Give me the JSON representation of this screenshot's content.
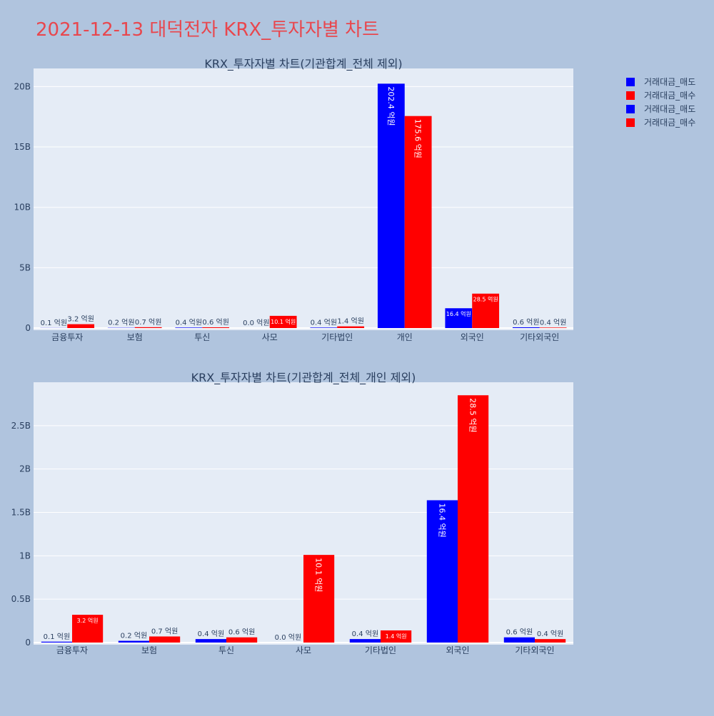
{
  "title": "2021-12-13 대덕전자 KRX_투자자별 차트",
  "colors": {
    "background": "#b0c4de",
    "plot_bg": "#e5ecf6",
    "title": "#e8474e",
    "text": "#2a3f5f",
    "sell": "#0000ff",
    "buy": "#ff0000"
  },
  "legend": {
    "items": [
      {
        "label": "거래대금_매도",
        "color": "#0000ff"
      },
      {
        "label": "거래대금_매수",
        "color": "#ff0000"
      },
      {
        "label": "거래대금_매도",
        "color": "#0000ff"
      },
      {
        "label": "거래대금_매수",
        "color": "#ff0000"
      }
    ]
  },
  "chart_data": [
    {
      "type": "bar",
      "title": "KRX_투자자별 차트(기관합계_전체 제외)",
      "categories": [
        "금융투자",
        "보험",
        "투신",
        "사모",
        "기타법인",
        "개인",
        "외국인",
        "기타외국인"
      ],
      "series": [
        {
          "name": "거래대금_매도",
          "color": "#0000ff",
          "values": [
            0.01,
            0.02,
            0.04,
            0.0,
            0.04,
            20.24,
            1.64,
            0.06
          ],
          "labels": [
            "0.1 억원",
            "0.2 억원",
            "0.4 억원",
            "0.0 억원",
            "0.4 억원",
            "202.4 억원",
            "16.4 억원",
            "0.6 억원"
          ]
        },
        {
          "name": "거래대금_매수",
          "color": "#ff0000",
          "values": [
            0.32,
            0.07,
            0.06,
            1.01,
            0.14,
            17.56,
            2.85,
            0.04
          ],
          "labels": [
            "3.2 억원",
            "0.7 억원",
            "0.6 억원",
            "10.1 억원",
            "1.4 억원",
            "175.6 억원",
            "28.5 억원",
            "0.4 억원"
          ]
        }
      ],
      "ylim": [
        0,
        21.5
      ],
      "yticks": [
        0,
        5,
        10,
        15,
        20
      ],
      "ytick_labels": [
        "0",
        "5B",
        "10B",
        "15B",
        "20B"
      ],
      "grid": true,
      "legend_position": "top-right"
    },
    {
      "type": "bar",
      "title": "KRX_투자자별 차트(기관합계_전체_개인 제외)",
      "categories": [
        "금융투자",
        "보험",
        "투신",
        "사모",
        "기타법인",
        "외국인",
        "기타외국인"
      ],
      "series": [
        {
          "name": "거래대금_매도",
          "color": "#0000ff",
          "values": [
            0.01,
            0.02,
            0.04,
            0.0,
            0.04,
            1.64,
            0.06
          ],
          "labels": [
            "0.1 억원",
            "0.2 억원",
            "0.4 억원",
            "0.0 억원",
            "0.4 억원",
            "16.4 억원",
            "0.6 억원"
          ]
        },
        {
          "name": "거래대금_매수",
          "color": "#ff0000",
          "values": [
            0.32,
            0.07,
            0.06,
            1.01,
            0.14,
            2.85,
            0.04
          ],
          "labels": [
            "3.2 억원",
            "0.7 억원",
            "0.6 억원",
            "10.1 억원",
            "1.4 억원",
            "28.5 억원",
            "0.4 억원"
          ]
        }
      ],
      "ylim": [
        0,
        3.0
      ],
      "yticks": [
        0,
        0.5,
        1,
        1.5,
        2,
        2.5
      ],
      "ytick_labels": [
        "0",
        "0.5B",
        "1B",
        "1.5B",
        "2B",
        "2.5B"
      ],
      "grid": true,
      "legend_position": "top-right"
    }
  ]
}
